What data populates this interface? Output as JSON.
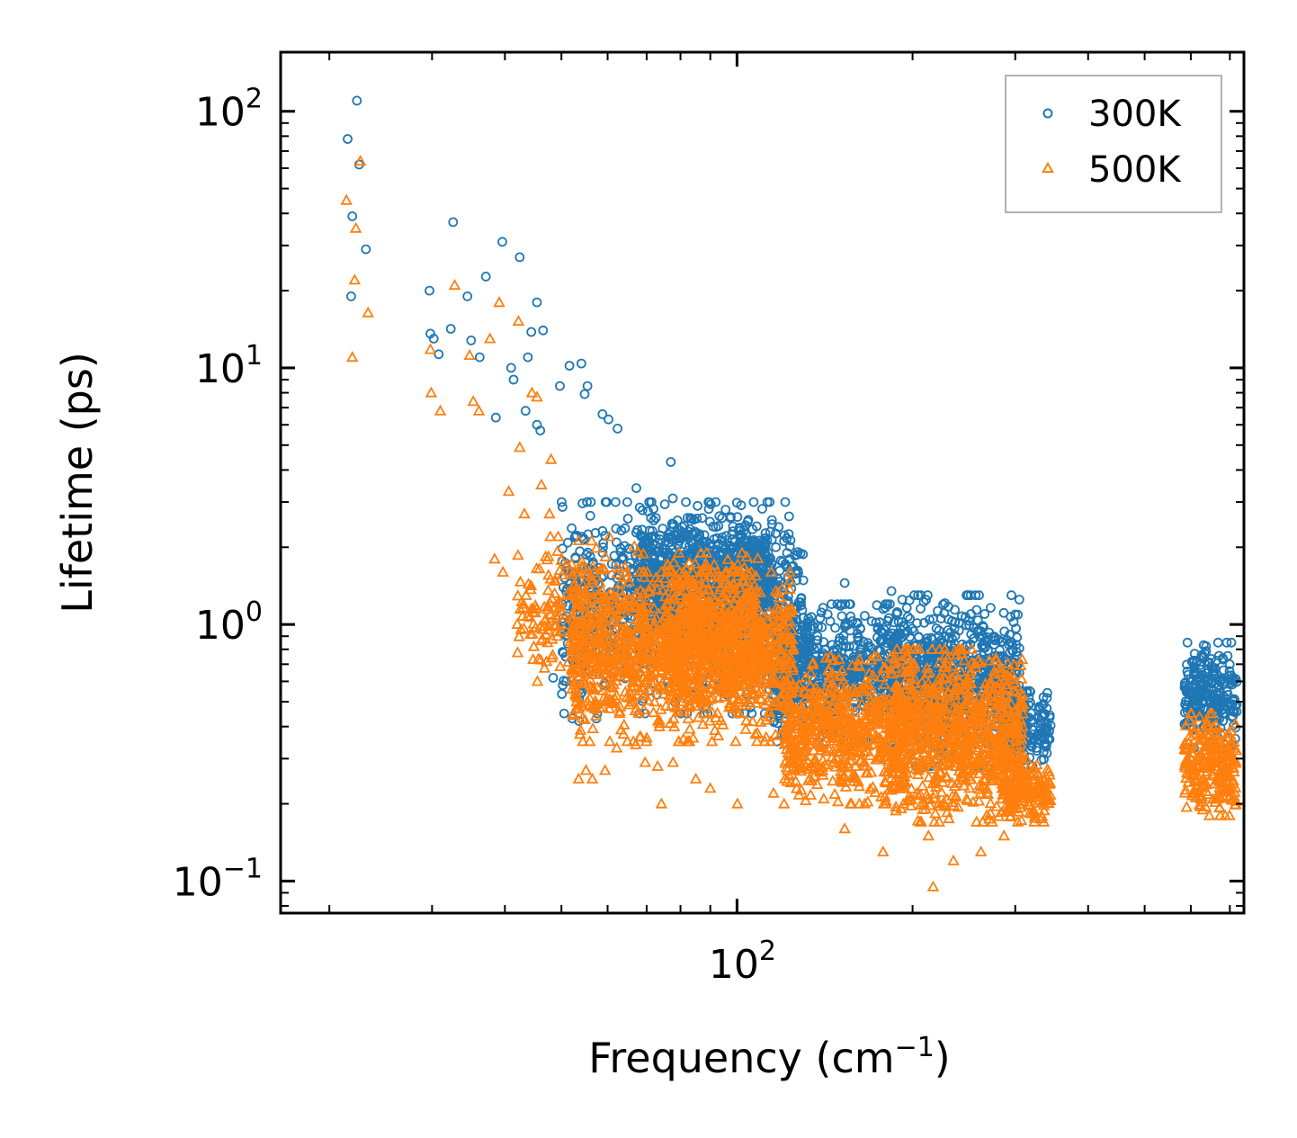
{
  "chart_data": {
    "type": "scatter",
    "xscale": "log",
    "yscale": "log",
    "xlim": [
      16.5,
      740
    ],
    "ylim": [
      0.075,
      170
    ],
    "xlabel": "Frequency (cm",
    "xlabel_sup": "−1",
    "xlabel_tail": ")",
    "ylabel": "Lifetime (ps)",
    "x_ticks": [
      {
        "base": "10",
        "exp": "2",
        "value": 100
      }
    ],
    "y_ticks": [
      {
        "base": "10",
        "exp": "2",
        "value": 100
      },
      {
        "base": "10",
        "exp": "1",
        "value": 10
      },
      {
        "base": "10",
        "exp": "0",
        "value": 1
      },
      {
        "base": "10",
        "exp": "−1",
        "value": 0.1
      }
    ],
    "legend_position": "top-right",
    "series": [
      {
        "name": "300K",
        "marker": "circle",
        "color": "#1f77b4",
        "points": [
          [
            21.5,
            78
          ],
          [
            22.3,
            110
          ],
          [
            22.5,
            62
          ],
          [
            21.9,
            39
          ],
          [
            21.8,
            19
          ],
          [
            23.1,
            29
          ],
          [
            29.7,
            20
          ],
          [
            29.8,
            13.6
          ],
          [
            30.2,
            13
          ],
          [
            30.8,
            11.3
          ],
          [
            32.3,
            14.2
          ],
          [
            32.6,
            37
          ],
          [
            34.5,
            19
          ],
          [
            35,
            12.8
          ],
          [
            36.2,
            11
          ],
          [
            37.1,
            22.7
          ],
          [
            38.6,
            6.4
          ],
          [
            39.6,
            31
          ],
          [
            41,
            10
          ],
          [
            41.4,
            9
          ],
          [
            42.4,
            27
          ],
          [
            43.4,
            6.8
          ],
          [
            43.8,
            11
          ],
          [
            44.4,
            13.8
          ],
          [
            45.4,
            18
          ],
          [
            45.4,
            6
          ],
          [
            46,
            5.7
          ],
          [
            46.5,
            14
          ],
          [
            49.7,
            8.5
          ],
          [
            51.6,
            10.2
          ],
          [
            54.1,
            10.4
          ],
          [
            54.8,
            7.9
          ],
          [
            55.4,
            8.5
          ],
          [
            58.8,
            6.6
          ],
          [
            60.2,
            6.3
          ],
          [
            62.4,
            5.8
          ],
          [
            67.2,
            3.4
          ],
          [
            70.7,
            3
          ],
          [
            72.6,
            2.6
          ],
          [
            77,
            4.3
          ],
          [
            77.6,
            3.1
          ],
          [
            80.5,
            2.4
          ],
          [
            85.6,
            2.9
          ],
          [
            95.6,
            2.8
          ],
          [
            100.9,
            1.7
          ],
          [
            111.1,
            1.7
          ],
          [
            114,
            2.3
          ],
          [
            153,
            1.45
          ],
          [
            184,
            1.35
          ],
          [
            192,
            1.25
          ],
          [
            217,
            1.05
          ],
          [
            240,
            0.8
          ],
          [
            262,
            0.65
          ],
          [
            300,
            0.5
          ],
          [
            48.4,
            0.62
          ],
          [
            52.2,
            0.43
          ],
          [
            53.6,
            0.42
          ],
          [
            57.4,
            0.43
          ],
          [
            57.6,
            0.45
          ]
        ],
        "clusters": [
          {
            "x": [
              50,
              130
            ],
            "y": [
              0.45,
              3.0
            ],
            "n": 1000
          },
          {
            "x": [
              68,
              115
            ],
            "y": [
              0.9,
              2.6
            ],
            "n": 600
          },
          {
            "x": [
              115,
              190
            ],
            "y": [
              0.35,
              1.2
            ],
            "n": 650
          },
          {
            "x": [
              185,
              305
            ],
            "y": [
              0.28,
              1.3
            ],
            "n": 800
          },
          {
            "x": [
              285,
              345
            ],
            "y": [
              0.28,
              0.55
            ],
            "n": 180
          },
          {
            "x": [
              585,
              720
            ],
            "y": [
              0.33,
              0.85
            ],
            "n": 260
          }
        ]
      },
      {
        "name": "500K",
        "marker": "triangle",
        "color": "#ff7f0e",
        "points": [
          [
            21.4,
            45
          ],
          [
            22.2,
            35
          ],
          [
            22.6,
            64
          ],
          [
            22.1,
            22
          ],
          [
            21.9,
            11
          ],
          [
            23.3,
            16.4
          ],
          [
            29.8,
            11.8
          ],
          [
            29.9,
            8
          ],
          [
            31,
            6.8
          ],
          [
            32.8,
            21
          ],
          [
            34.8,
            11.2
          ],
          [
            35.3,
            7.4
          ],
          [
            36.1,
            6.8
          ],
          [
            37.7,
            13
          ],
          [
            38.4,
            1.8
          ],
          [
            39.1,
            18
          ],
          [
            39.7,
            1.6
          ],
          [
            40.6,
            3.3
          ],
          [
            42.2,
            15.2
          ],
          [
            42.4,
            4.9
          ],
          [
            43.2,
            2.7
          ],
          [
            44.5,
            8
          ],
          [
            45.4,
            7.7
          ],
          [
            46.2,
            3.5
          ],
          [
            47.7,
            2.7
          ],
          [
            48,
            4.4
          ],
          [
            48.3,
            0.76
          ],
          [
            49.2,
            0.9
          ],
          [
            51,
            1.3
          ],
          [
            53.5,
            0.25
          ],
          [
            55.1,
            0.27
          ],
          [
            56.5,
            0.25
          ],
          [
            59.4,
            0.27
          ],
          [
            62.2,
            0.33
          ],
          [
            67.1,
            0.34
          ],
          [
            69.6,
            0.29
          ],
          [
            73.1,
            0.28
          ],
          [
            74.2,
            0.2
          ],
          [
            77.7,
            0.29
          ],
          [
            85,
            0.25
          ],
          [
            90,
            0.23
          ],
          [
            100.2,
            0.2
          ],
          [
            115.5,
            0.22
          ],
          [
            153,
            0.16
          ],
          [
            178,
            0.13
          ],
          [
            213,
            0.15
          ],
          [
            217,
            0.095
          ],
          [
            235,
            0.12
          ],
          [
            262,
            0.13
          ],
          [
            287,
            0.15
          ]
        ],
        "clusters": [
          {
            "x": [
              42,
              70
            ],
            "y": [
              0.6,
              2.2
            ],
            "n": 220
          },
          {
            "x": [
              52,
              125
            ],
            "y": [
              0.35,
              1.6
            ],
            "n": 1100
          },
          {
            "x": [
              75,
              110
            ],
            "y": [
              0.45,
              1.9
            ],
            "n": 500
          },
          {
            "x": [
              120,
              200
            ],
            "y": [
              0.2,
              0.75
            ],
            "n": 650
          },
          {
            "x": [
              185,
              310
            ],
            "y": [
              0.17,
              0.8
            ],
            "n": 850
          },
          {
            "x": [
              285,
              345
            ],
            "y": [
              0.17,
              0.3
            ],
            "n": 180
          },
          {
            "x": [
              585,
              720
            ],
            "y": [
              0.18,
              0.45
            ],
            "n": 240
          }
        ]
      }
    ]
  }
}
